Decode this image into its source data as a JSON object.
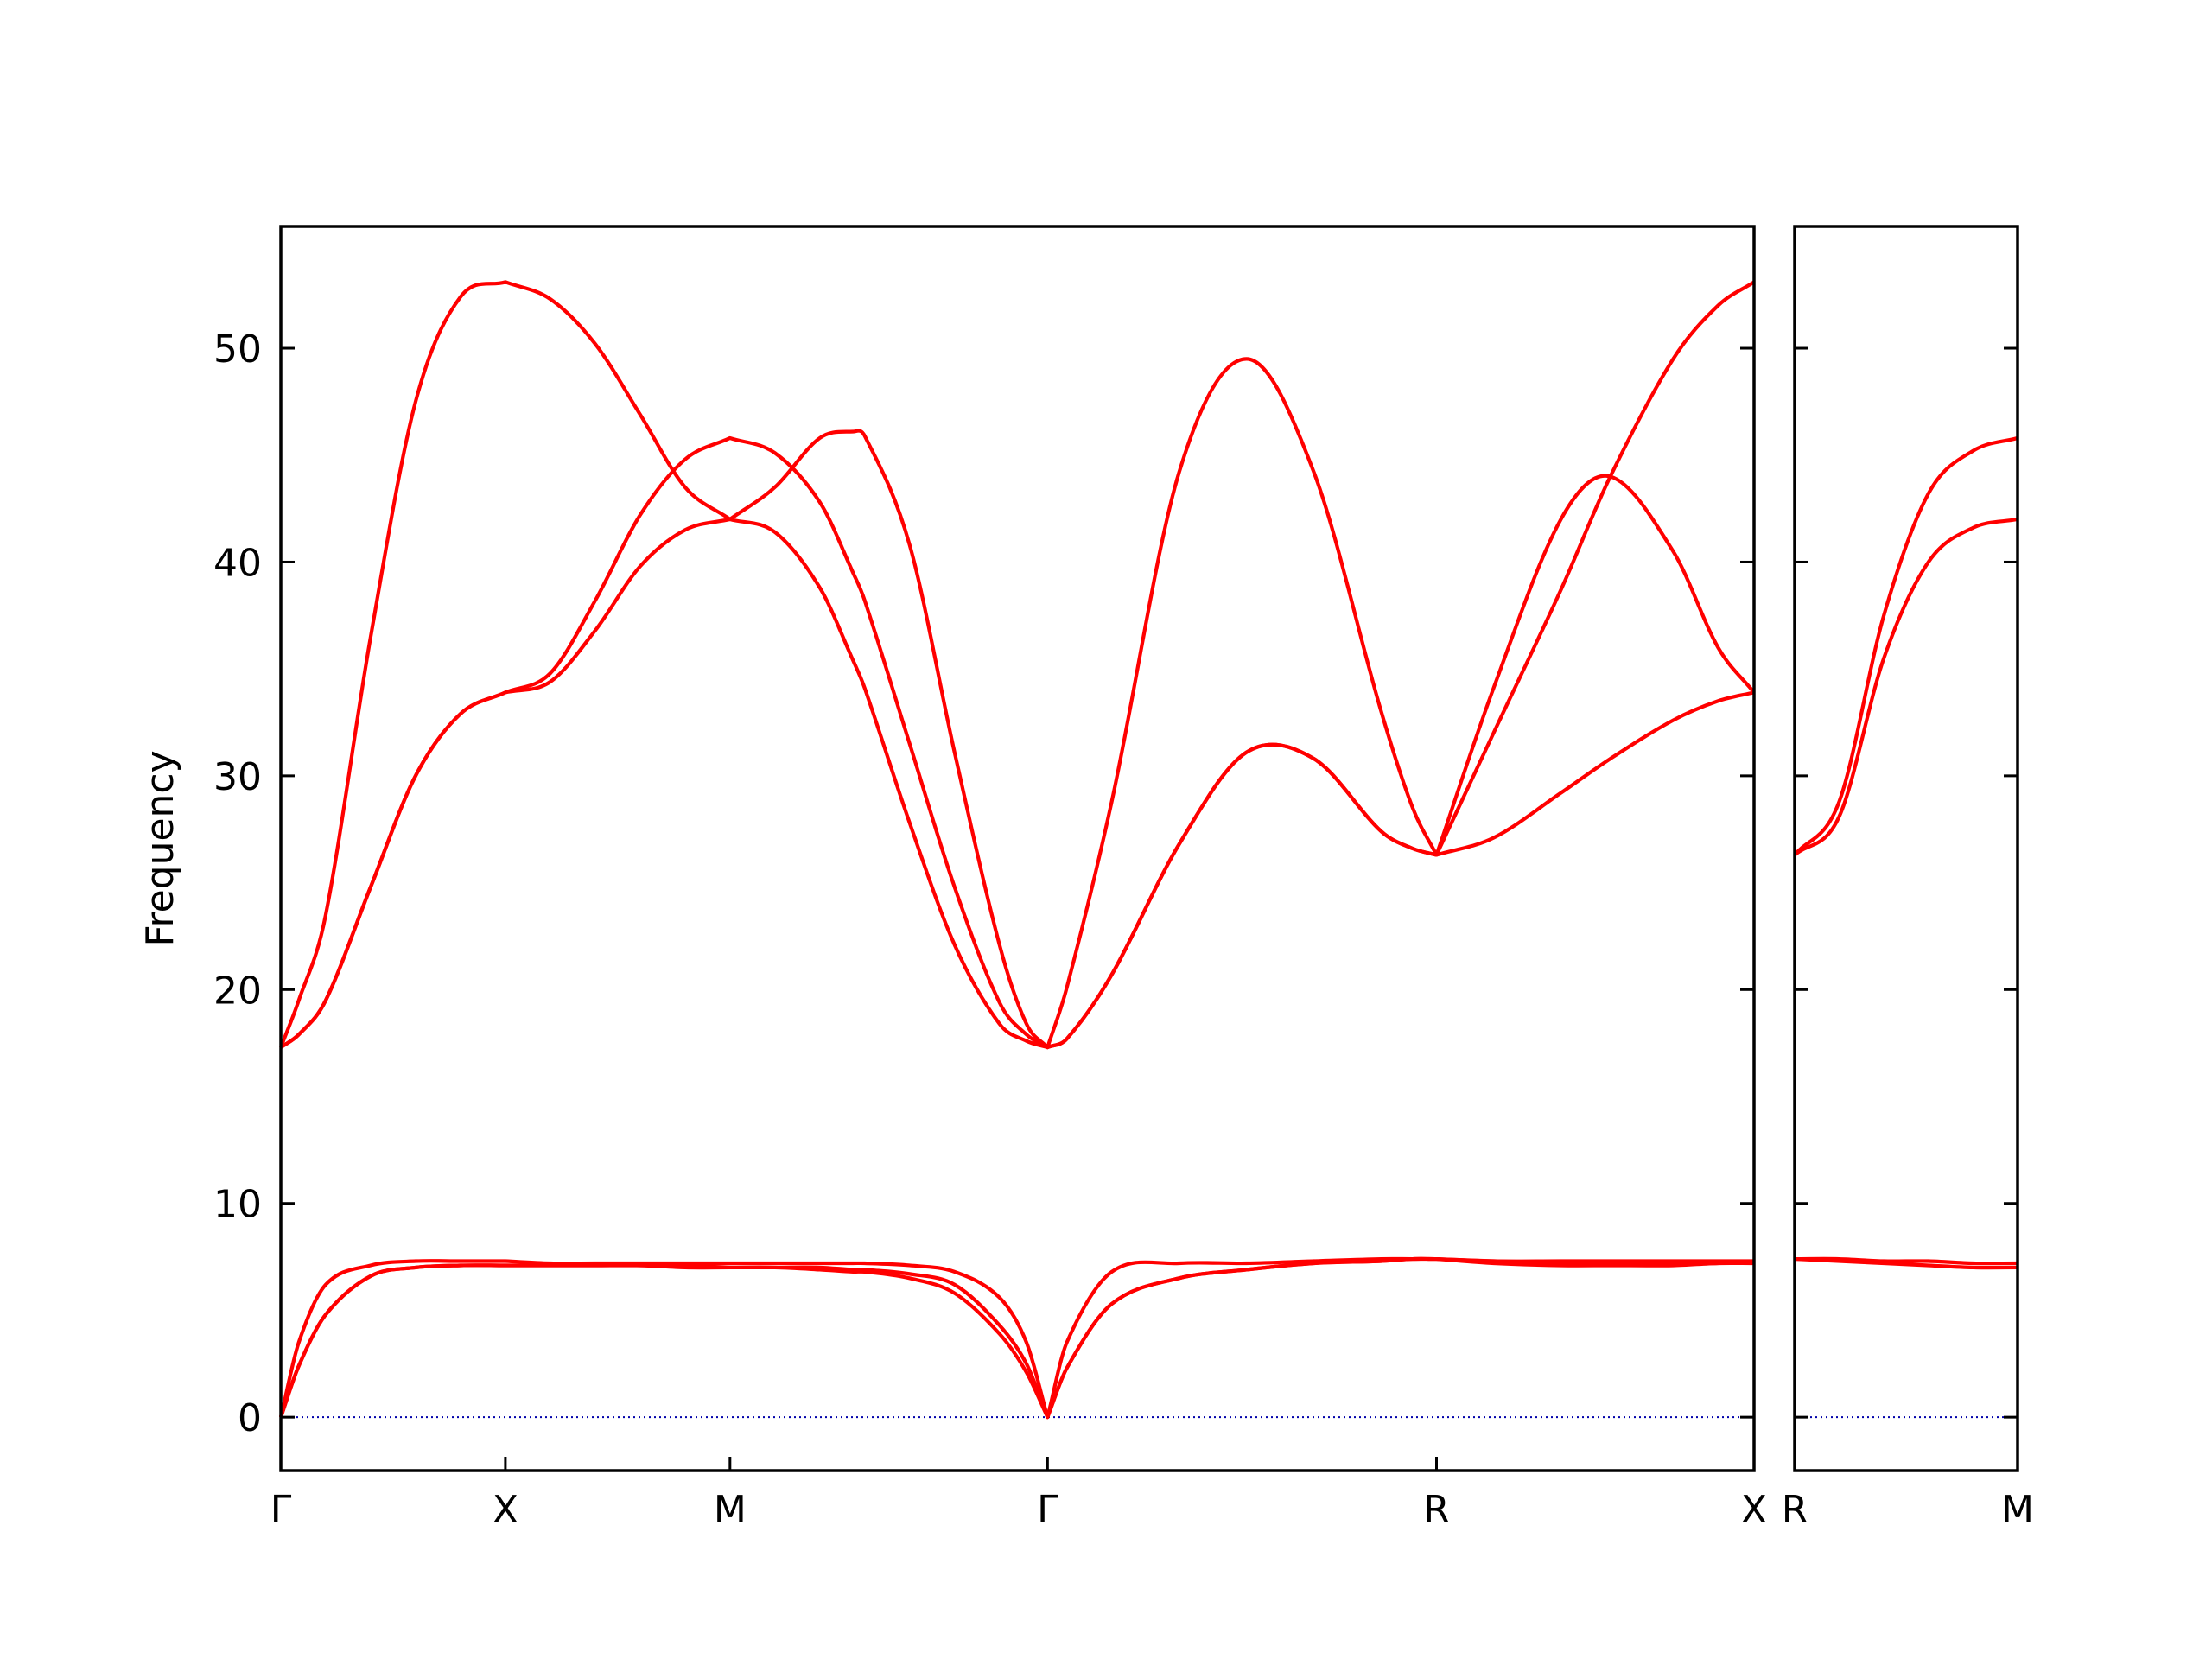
{
  "chart_data": [
    {
      "type": "line",
      "ylabel": "Frequency",
      "x": [
        0,
        0.04,
        0.1,
        0.2,
        0.3,
        0.4,
        0.5,
        0.6,
        0.7,
        0.8,
        0.9,
        1.0,
        1.1,
        1.2,
        1.274,
        1.3,
        1.4,
        1.5,
        1.6,
        1.66,
        1.707,
        1.75,
        1.85,
        2.0,
        2.15,
        2.3,
        2.45,
        2.52,
        2.573,
        2.7,
        2.85,
        2.96,
        3.1,
        3.2,
        3.28
      ],
      "series": [
        {
          "color": "#ff0000",
          "values": [
            17.3,
            19.5,
            23.5,
            36.5,
            47.5,
            52.4,
            53.1,
            52.3,
            50.2,
            46.9,
            43.5,
            42.0,
            43.5,
            45.8,
            46.1,
            45.9,
            40.8,
            31.1,
            22.1,
            18.4,
            17.3,
            20.1,
            28.8,
            44.2,
            49.5,
            44.2,
            33.0,
            28.5,
            26.3,
            32.0,
            38.7,
            44.0,
            49.5,
            52.0,
            53.1
          ]
        },
        {
          "color": "#ff0000",
          "values": [
            17.3,
            17.9,
            19.5,
            24.8,
            30.0,
            32.9,
            33.9,
            34.8,
            38.2,
            42.2,
            44.8,
            45.8,
            45.1,
            42.8,
            39.5,
            38.2,
            31.5,
            24.8,
            19.4,
            17.9,
            17.3,
            17.7,
            20.7,
            26.8,
            31.1,
            30.8,
            27.4,
            26.6,
            26.3,
            34.1,
            42.0,
            44.0,
            40.5,
            36.0,
            33.9
          ]
        },
        {
          "color": "#ff0000",
          "values": [
            17.3,
            17.9,
            19.5,
            24.8,
            30.0,
            32.9,
            33.9,
            34.4,
            36.8,
            39.8,
            41.5,
            42.0,
            41.4,
            38.8,
            35.4,
            34.1,
            27.8,
            22.1,
            18.4,
            17.6,
            17.3,
            17.7,
            20.7,
            26.8,
            31.1,
            30.8,
            27.4,
            26.6,
            26.3,
            27.1,
            29.2,
            30.8,
            32.6,
            33.5,
            33.9
          ]
        },
        {
          "color": "#ff0000",
          "values": [
            0,
            3.5,
            6.2,
            7.1,
            7.3,
            7.3,
            7.3,
            7.2,
            7.2,
            7.2,
            7.2,
            7.2,
            7.2,
            7.2,
            7.2,
            7.2,
            7.1,
            6.8,
            5.6,
            3.5,
            0,
            3.5,
            6.8,
            7.2,
            7.2,
            7.3,
            7.4,
            7.4,
            7.4,
            7.3,
            7.3,
            7.3,
            7.3,
            7.3,
            7.3
          ]
        },
        {
          "color": "#ff0000",
          "values": [
            0,
            2.4,
            4.8,
            6.6,
            7.0,
            7.1,
            7.1,
            7.1,
            7.1,
            7.1,
            7.0,
            7.0,
            7.0,
            7.0,
            6.9,
            6.9,
            6.7,
            6.2,
            4.3,
            2.5,
            0,
            2.3,
            5.3,
            6.5,
            6.9,
            7.2,
            7.3,
            7.4,
            7.4,
            7.3,
            7.2,
            7.2,
            7.2,
            7.2,
            7.3
          ]
        },
        {
          "color": "#ff0000",
          "values": [
            0,
            2.4,
            4.8,
            6.6,
            7.0,
            7.1,
            7.1,
            7.1,
            7.1,
            7.1,
            7.1,
            7.0,
            7.0,
            6.9,
            6.8,
            6.8,
            6.5,
            5.8,
            3.9,
            2.1,
            0,
            2.3,
            5.3,
            6.5,
            6.9,
            7.2,
            7.3,
            7.4,
            7.4,
            7.2,
            7.1,
            7.1,
            7.1,
            7.2,
            7.2
          ]
        }
      ],
      "xlim": [
        0,
        3.28
      ],
      "ylim": [
        -2.5,
        55.7
      ],
      "xticks": [
        {
          "value": 0,
          "label": "Γ"
        },
        {
          "value": 0.5,
          "label": "X"
        },
        {
          "value": 1.0,
          "label": "M"
        },
        {
          "value": 1.707,
          "label": "Γ"
        },
        {
          "value": 2.573,
          "label": "R"
        },
        {
          "value": 3.28,
          "label": "X"
        }
      ],
      "yticks": [
        0,
        10,
        20,
        30,
        40,
        50
      ],
      "hlines": [
        {
          "y": 0,
          "color": "#0000aa"
        }
      ]
    },
    {
      "type": "line",
      "x": [
        0,
        0.1,
        0.2,
        0.3,
        0.4,
        0.5
      ],
      "series": [
        {
          "color": "#ff0000",
          "values": [
            26.3,
            28.8,
            37.5,
            43.2,
            45.2,
            45.8
          ]
        },
        {
          "color": "#ff0000",
          "values": [
            26.3,
            28.1,
            35.5,
            40.0,
            41.6,
            42.0
          ]
        },
        {
          "color": "#ff0000",
          "values": [
            7.4,
            7.4,
            7.3,
            7.3,
            7.2,
            7.2
          ]
        },
        {
          "color": "#ff0000",
          "values": [
            7.4,
            7.3,
            7.2,
            7.1,
            7.0,
            7.0
          ]
        }
      ],
      "xlim": [
        0,
        0.5
      ],
      "ylim": [
        -2.5,
        55.7
      ],
      "xticks": [
        {
          "value": 0,
          "label": "R"
        },
        {
          "value": 0.5,
          "label": "M"
        }
      ],
      "yticks": [
        0,
        10,
        20,
        30,
        40,
        50
      ],
      "hlines": [
        {
          "y": 0,
          "color": "#0000aa"
        }
      ]
    }
  ]
}
